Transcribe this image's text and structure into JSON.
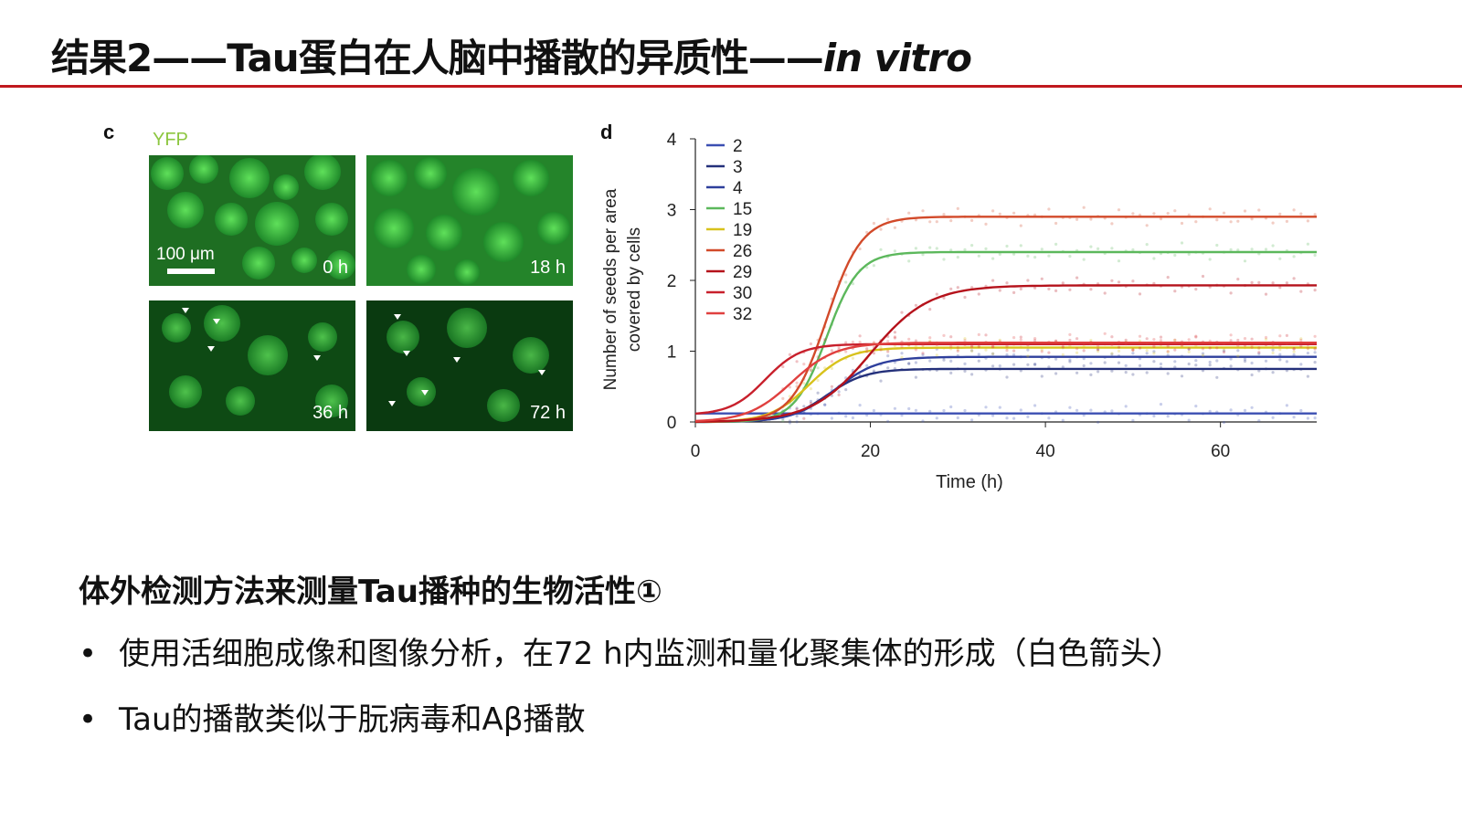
{
  "title": {
    "main": "结果2——Tau蛋白在人脑中播散的异质性——",
    "italic": "in vitro"
  },
  "panel_c": {
    "letter": "c",
    "channel": "YFP",
    "scale_bar": "100 μm",
    "frames": [
      "0 h",
      "18 h",
      "36 h",
      "72 h"
    ]
  },
  "panel_d": {
    "letter": "d"
  },
  "chart_data": {
    "type": "line",
    "xlabel": "Time (h)",
    "ylabel_lines": [
      "Number of seeds per area",
      "covered by cells"
    ],
    "xlim": [
      0,
      71
    ],
    "ylim": [
      0,
      4
    ],
    "xticks": [
      0,
      20,
      40,
      60
    ],
    "yticks": [
      0,
      1,
      2,
      3,
      4
    ],
    "grid": false,
    "legend_position": "top-left",
    "series": [
      {
        "name": "2",
        "color": "#3b4fb2",
        "plateau": 0.12,
        "midpoint": 14,
        "rate": 0.6,
        "baseline": 0.12
      },
      {
        "name": "3",
        "color": "#24307a",
        "plateau": 0.75,
        "midpoint": 15,
        "rate": 0.45,
        "baseline": 0.0
      },
      {
        "name": "4",
        "color": "#2e3f9c",
        "plateau": 0.92,
        "midpoint": 16,
        "rate": 0.42,
        "baseline": 0.0
      },
      {
        "name": "15",
        "color": "#5cb85c",
        "plateau": 2.4,
        "midpoint": 15,
        "rate": 0.55,
        "baseline": 0.0
      },
      {
        "name": "19",
        "color": "#d8c21c",
        "plateau": 1.05,
        "midpoint": 13,
        "rate": 0.45,
        "baseline": 0.0
      },
      {
        "name": "26",
        "color": "#d24a2a",
        "plateau": 2.9,
        "midpoint": 15,
        "rate": 0.5,
        "baseline": 0.0
      },
      {
        "name": "29",
        "color": "#b5121b",
        "plateau": 1.93,
        "midpoint": 20,
        "rate": 0.3,
        "baseline": 0.0
      },
      {
        "name": "30",
        "color": "#c8202c",
        "plateau": 1.1,
        "midpoint": 8,
        "rate": 0.5,
        "baseline": 0.1
      },
      {
        "name": "32",
        "color": "#e0403f",
        "plateau": 1.12,
        "midpoint": 11,
        "rate": 0.4,
        "baseline": 0.0
      }
    ]
  },
  "subheading": "体外检测方法来测量Tau播种的生物活性①",
  "bullets": [
    "使用活细胞成像和图像分析，在72 h内监测和量化聚集体的形成（白色箭头）",
    "Tau的播散类似于朊病毒和Aβ播散"
  ]
}
